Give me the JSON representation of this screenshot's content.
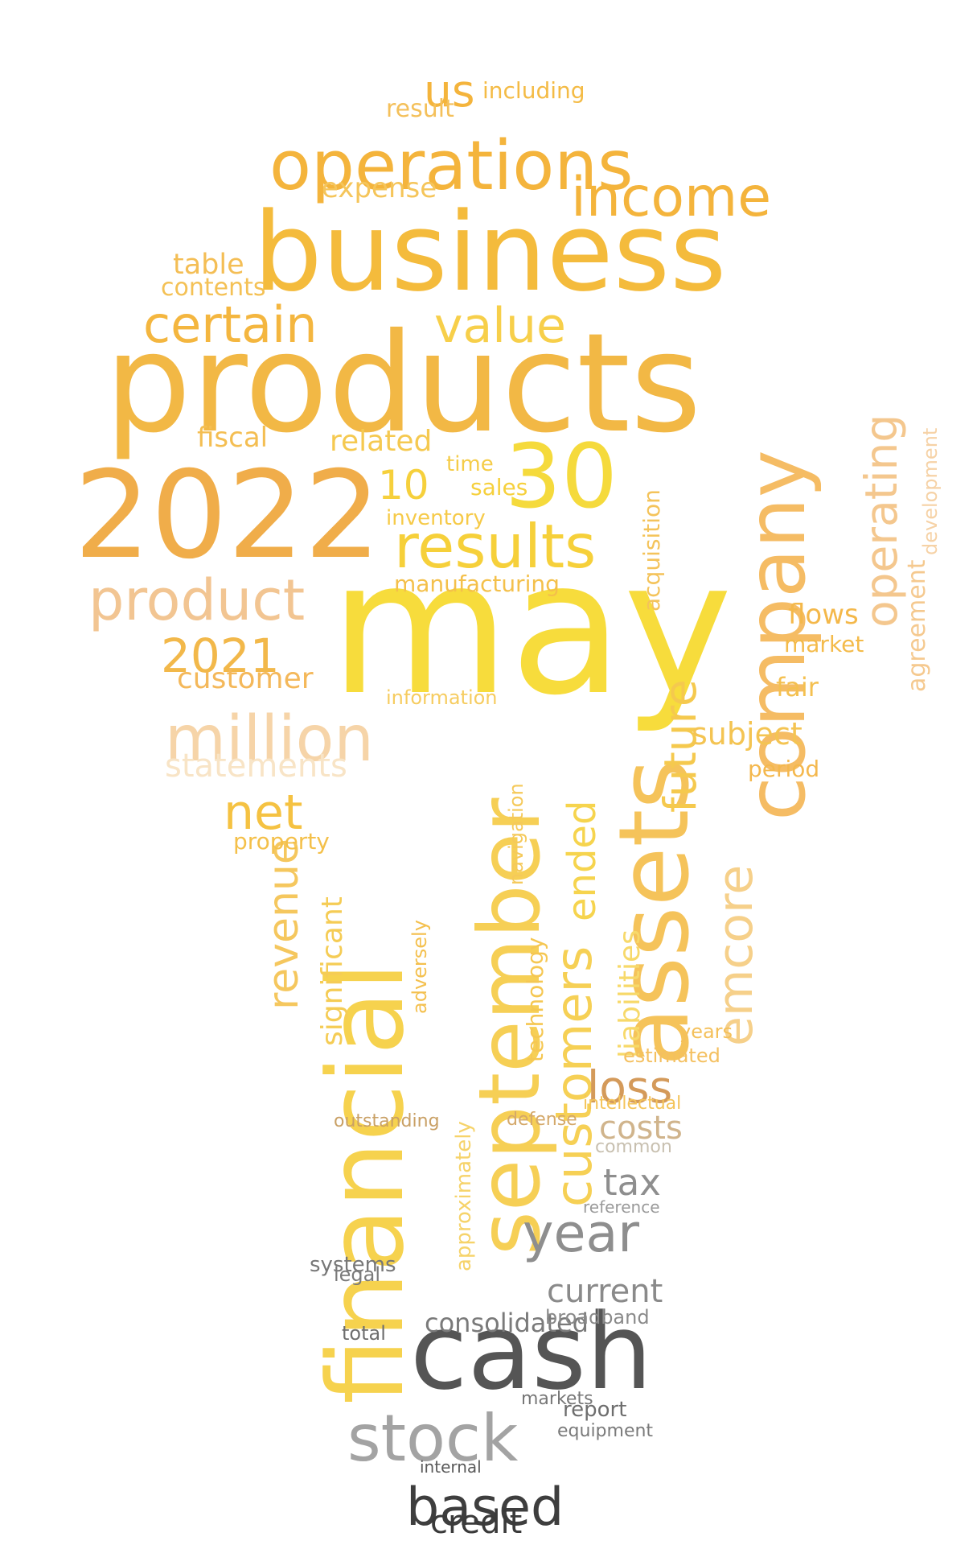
{
  "words": [
    {
      "text": "may",
      "color": "#f7dc3c"
    },
    {
      "text": "products",
      "color": "#f2b845"
    },
    {
      "text": "business",
      "color": "#f4bb3c"
    },
    {
      "text": "2022",
      "color": "#f0ad4a"
    },
    {
      "text": "cash",
      "color": "#555555"
    },
    {
      "text": "financial",
      "color": "#f6d24e"
    },
    {
      "text": "september",
      "color": "#f6cf55"
    },
    {
      "text": "assets",
      "color": "#f5c35a"
    },
    {
      "text": "company",
      "color": "#f5bc64"
    },
    {
      "text": "30",
      "color": "#f5da3c"
    },
    {
      "text": "operations",
      "color": "#f4b43c"
    },
    {
      "text": "results",
      "color": "#f6d03a"
    },
    {
      "text": "product",
      "color": "#f2c592"
    },
    {
      "text": "million",
      "color": "#f6d4a8"
    },
    {
      "text": "stock",
      "color": "#a3a3a3"
    },
    {
      "text": "based",
      "color": "#3e3e3e"
    },
    {
      "text": "customers",
      "color": "#f6d055"
    },
    {
      "text": "year",
      "color": "#8e8e8e"
    },
    {
      "text": "income",
      "color": "#f4b43c"
    },
    {
      "text": "certain",
      "color": "#f4b63f"
    },
    {
      "text": "value",
      "color": "#f7cf4a"
    },
    {
      "text": "future",
      "color": "#f5c94e"
    },
    {
      "text": "operating",
      "color": "#f4c78e"
    },
    {
      "text": "emcore",
      "color": "#f6d08a"
    },
    {
      "text": "ended",
      "color": "#f6d44e"
    },
    {
      "text": "loss",
      "color": "#d49a5a"
    },
    {
      "text": "revenue",
      "color": "#f5c75e"
    },
    {
      "text": "net",
      "color": "#f5c242"
    },
    {
      "text": "2021",
      "color": "#f2b84a"
    },
    {
      "text": "us",
      "color": "#f4b43c"
    },
    {
      "text": "credit",
      "color": "#3a3a3a"
    },
    {
      "text": "current",
      "color": "#8a8a8a"
    },
    {
      "text": "liabilities",
      "color": "#f7d96a"
    },
    {
      "text": "significant",
      "color": "#f5cc55"
    },
    {
      "text": "subject",
      "color": "#f4c452"
    },
    {
      "text": "agreement",
      "color": "#f5c98f"
    },
    {
      "text": "customer",
      "color": "#f4b85a"
    },
    {
      "text": "statements",
      "color": "#f8e4c6"
    },
    {
      "text": "costs",
      "color": "#d0b48c"
    },
    {
      "text": "tax",
      "color": "#8e8e8e"
    },
    {
      "text": "consolidated",
      "color": "#7a7a7a"
    },
    {
      "text": "related",
      "color": "#f5c950"
    },
    {
      "text": "fiscal",
      "color": "#f4be52"
    },
    {
      "text": "expense",
      "color": "#f5c55a"
    },
    {
      "text": "result",
      "color": "#f4c05a"
    },
    {
      "text": "10",
      "color": "#f6d03c"
    },
    {
      "text": "manufacturing",
      "color": "#f4c04a"
    },
    {
      "text": "table",
      "color": "#f4be55"
    },
    {
      "text": "including",
      "color": "#f4bb45"
    },
    {
      "text": "contents",
      "color": "#f4c155"
    },
    {
      "text": "flows",
      "color": "#f4b84a"
    },
    {
      "text": "information",
      "color": "#f6cc60"
    },
    {
      "text": "inventory",
      "color": "#f6ca48"
    },
    {
      "text": "sales",
      "color": "#f6d03c"
    },
    {
      "text": "time",
      "color": "#f5cc48"
    },
    {
      "text": "acquisition",
      "color": "#f4c35a"
    },
    {
      "text": "development",
      "color": "#f6d2a6"
    },
    {
      "text": "fair",
      "color": "#f4c050"
    },
    {
      "text": "market",
      "color": "#f4bb4a"
    },
    {
      "text": "period",
      "color": "#f4b84e"
    },
    {
      "text": "property",
      "color": "#f4c04a"
    },
    {
      "text": "common",
      "color": "#c8c0b0"
    },
    {
      "text": "reference",
      "color": "#9a9a9a"
    },
    {
      "text": "systems",
      "color": "#777777"
    },
    {
      "text": "report",
      "color": "#6e6e6e"
    },
    {
      "text": "internal",
      "color": "#5a5a5a"
    },
    {
      "text": "defense",
      "color": "#d4a86a"
    },
    {
      "text": "outstanding",
      "color": "#c9a065"
    },
    {
      "text": "technology",
      "color": "#f5c752"
    },
    {
      "text": "navigation",
      "color": "#f5c95a"
    },
    {
      "text": "approximately",
      "color": "#f6d36a"
    },
    {
      "text": "adversely",
      "color": "#f4c04e"
    },
    {
      "text": "estimated",
      "color": "#f4c060"
    },
    {
      "text": "years",
      "color": "#f4c05a"
    },
    {
      "text": "intellectual",
      "color": "#f4c45a"
    },
    {
      "text": "broadband",
      "color": "#8a8a8a"
    },
    {
      "text": "equipment",
      "color": "#7a7a7a"
    },
    {
      "text": "markets",
      "color": "#777777"
    },
    {
      "text": "total",
      "color": "#6e6e6e"
    },
    {
      "text": "legal",
      "color": "#7a7a7a"
    }
  ]
}
